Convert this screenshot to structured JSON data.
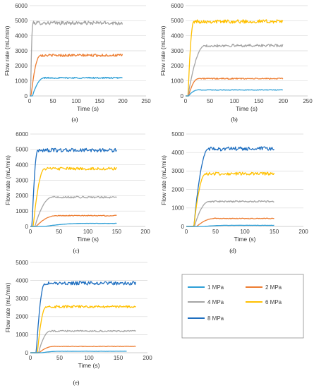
{
  "colors": {
    "1 MPa": "#2e9fd6",
    "2 MPa": "#ed7d31",
    "4 MPa": "#a5a5a5",
    "6 MPa": "#ffc000",
    "8 MPa": "#1f6fc0"
  },
  "legend": [
    "1 MPa",
    "2 MPa",
    "4 MPa",
    "6 MPa",
    "8 MPa"
  ],
  "chart_data": [
    {
      "type": "line",
      "panel": "a",
      "caption": "(a)",
      "xlabel": "Time (s)",
      "ylabel": "Flow rate (mL/min)",
      "xlim": [
        0,
        250
      ],
      "ylim": [
        0,
        6000
      ],
      "xticks": [
        0,
        50,
        100,
        150,
        200,
        250
      ],
      "yticks": [
        0,
        1000,
        2000,
        3000,
        4000,
        5000,
        6000
      ],
      "grid": "horizontal",
      "series": [
        {
          "name": "4 MPa",
          "t0": 2,
          "rise": 5,
          "end": 200,
          "plateau": 4850,
          "noise": 120
        },
        {
          "name": "2 MPa",
          "t0": 3,
          "rise": 20,
          "end": 200,
          "plateau": 2700,
          "noise": 80
        },
        {
          "name": "1 MPa",
          "t0": 6,
          "rise": 25,
          "end": 200,
          "plateau": 1200,
          "noise": 45
        }
      ]
    },
    {
      "type": "line",
      "panel": "b",
      "caption": "(b)",
      "xlabel": "Time (s)",
      "ylabel": "Flow rate (mL/min)",
      "xlim": [
        0,
        250
      ],
      "ylim": [
        0,
        6000
      ],
      "xticks": [
        0,
        50,
        100,
        150,
        200,
        250
      ],
      "yticks": [
        0,
        1000,
        2000,
        3000,
        4000,
        5000,
        6000
      ],
      "grid": "horizontal",
      "series": [
        {
          "name": "6 MPa",
          "t0": 5,
          "rise": 12,
          "end": 200,
          "plateau": 4950,
          "noise": 120
        },
        {
          "name": "4 MPa",
          "t0": 5,
          "rise": 35,
          "end": 200,
          "plateau": 3350,
          "noise": 90
        },
        {
          "name": "2 MPa",
          "t0": 6,
          "rise": 20,
          "end": 200,
          "plateau": 1150,
          "noise": 40
        },
        {
          "name": "1 MPa",
          "t0": 6,
          "rise": 20,
          "end": 200,
          "plateau": 400,
          "noise": 20
        }
      ]
    },
    {
      "type": "line",
      "panel": "c",
      "caption": "(c)",
      "xlabel": "Time (s)",
      "ylabel": "Flow rate (mL/min)",
      "xlim": [
        0,
        200
      ],
      "ylim": [
        0,
        6000
      ],
      "xticks": [
        0,
        50,
        100,
        150,
        200
      ],
      "yticks": [
        0,
        1000,
        2000,
        3000,
        4000,
        5000,
        6000
      ],
      "grid": "horizontal",
      "series": [
        {
          "name": "8 MPa",
          "t0": 3,
          "rise": 10,
          "end": 150,
          "plateau": 4950,
          "noise": 120
        },
        {
          "name": "6 MPa",
          "t0": 5,
          "rise": 20,
          "end": 150,
          "plateau": 3750,
          "noise": 90
        },
        {
          "name": "4 MPa",
          "t0": 8,
          "rise": 30,
          "end": 150,
          "plateau": 1900,
          "noise": 60
        },
        {
          "name": "2 MPa",
          "t0": 10,
          "rise": 35,
          "end": 150,
          "plateau": 700,
          "noise": 30
        },
        {
          "name": "1 MPa",
          "t0": 25,
          "rise": 70,
          "end": 150,
          "plateau": 200,
          "noise": 10
        }
      ]
    },
    {
      "type": "line",
      "panel": "d",
      "caption": "(d)",
      "xlabel": "Time (s)",
      "ylabel": "Flow rate (mL/min)",
      "xlim": [
        0,
        200
      ],
      "ylim": [
        0,
        5000
      ],
      "xticks": [
        0,
        50,
        100,
        150,
        200
      ],
      "yticks": [
        0,
        1000,
        2000,
        3000,
        4000,
        5000
      ],
      "grid": "horizontal",
      "series": [
        {
          "name": "8 MPa",
          "t0": 13,
          "rise": 25,
          "end": 150,
          "plateau": 4200,
          "noise": 110
        },
        {
          "name": "6 MPa",
          "t0": 13,
          "rise": 20,
          "end": 150,
          "plateau": 2850,
          "noise": 80
        },
        {
          "name": "4 MPa",
          "t0": 14,
          "rise": 25,
          "end": 150,
          "plateau": 1350,
          "noise": 40
        },
        {
          "name": "2 MPa",
          "t0": 18,
          "rise": 30,
          "end": 150,
          "plateau": 430,
          "noise": 20
        },
        {
          "name": "1 MPa",
          "t0": 30,
          "rise": 40,
          "end": 150,
          "plateau": 60,
          "noise": 5
        }
      ]
    },
    {
      "type": "line",
      "panel": "e",
      "caption": "(e)",
      "xlabel": "Time (s)",
      "ylabel": "Flow rate (mL/min)",
      "xlim": [
        0,
        200
      ],
      "ylim": [
        0,
        5000
      ],
      "xticks": [
        0,
        50,
        100,
        150,
        200
      ],
      "yticks": [
        0,
        1000,
        2000,
        3000,
        4000,
        5000
      ],
      "grid": "horizontal",
      "series": [
        {
          "name": "8 MPa",
          "t0": 10,
          "rise": 15,
          "end": 180,
          "plateau": 3850,
          "noise": 100
        },
        {
          "name": "6 MPa",
          "t0": 12,
          "rise": 15,
          "end": 180,
          "plateau": 2550,
          "noise": 70
        },
        {
          "name": "4 MPa",
          "t0": 14,
          "rise": 20,
          "end": 180,
          "plateau": 1200,
          "noise": 40
        },
        {
          "name": "2 MPa",
          "t0": 15,
          "rise": 25,
          "end": 180,
          "plateau": 350,
          "noise": 15
        },
        {
          "name": "1 MPa",
          "t0": 20,
          "rise": 30,
          "end": 165,
          "plateau": 80,
          "noise": 5
        }
      ]
    }
  ]
}
